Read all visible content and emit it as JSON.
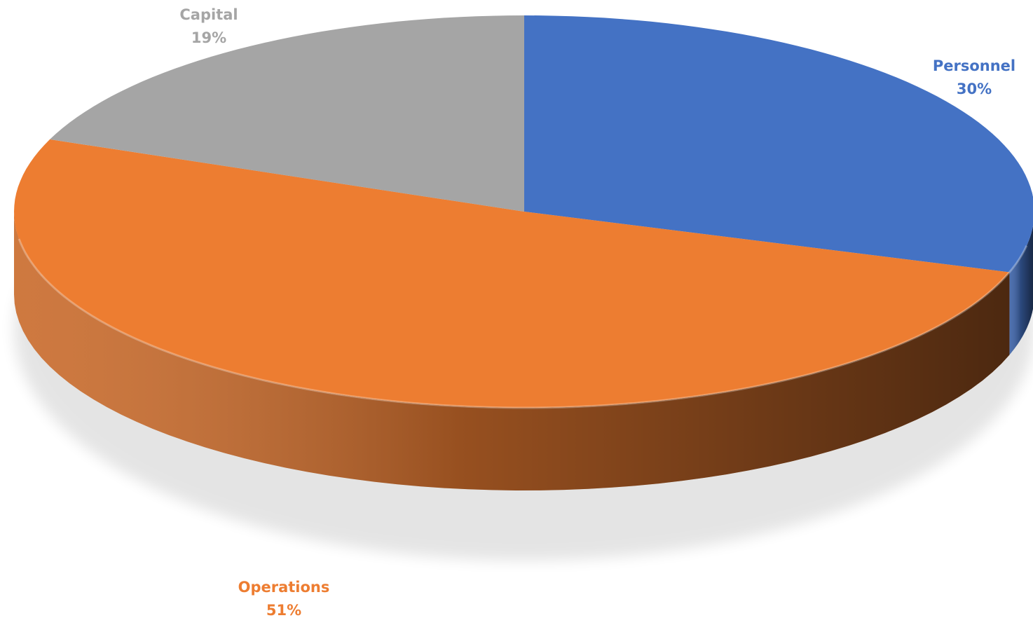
{
  "chart_data": {
    "type": "pie",
    "style": "3d",
    "title": "",
    "slices": [
      {
        "label": "Personnel",
        "value": 30,
        "value_label": "30%",
        "color": "#4472C4"
      },
      {
        "label": "Operations",
        "value": 51,
        "value_label": "51%",
        "color": "#ED7D31"
      },
      {
        "label": "Capital",
        "value": 19,
        "value_label": "19%",
        "color": "#A5A5A5"
      }
    ],
    "start_angle_deg": 0,
    "direction": "clockwise",
    "legend": "none",
    "data_labels": "outside"
  }
}
